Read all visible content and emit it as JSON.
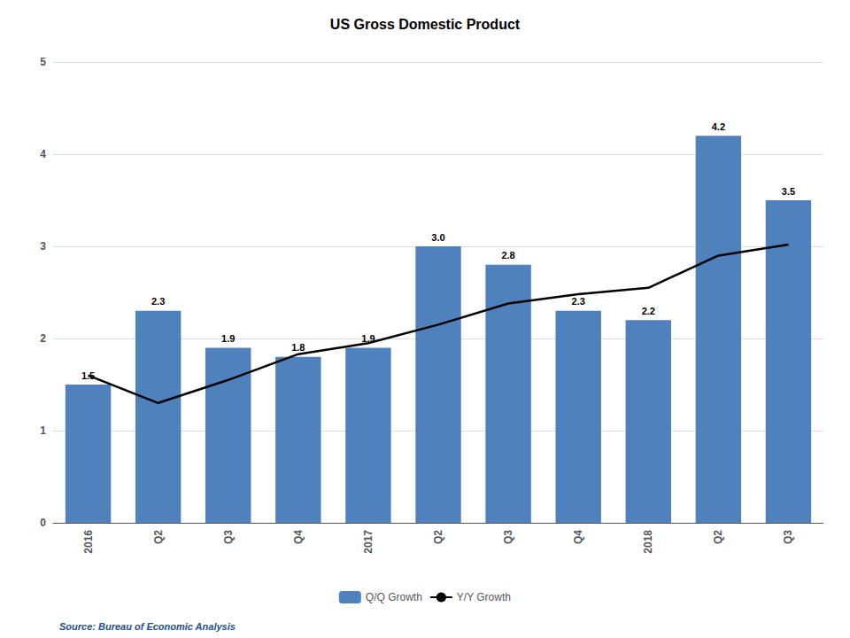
{
  "chart_data": {
    "type": "bar",
    "title": "US Gross Domestic Product",
    "categories": [
      "2016",
      "Q2",
      "Q3",
      "Q4",
      "2017",
      "Q2",
      "Q3",
      "Q4",
      "2018",
      "Q2",
      "Q3"
    ],
    "series": [
      {
        "name": "Q/Q Growth",
        "type": "bar",
        "color": "#4F81BD",
        "values": [
          1.5,
          2.3,
          1.9,
          1.8,
          1.9,
          3.0,
          2.8,
          2.3,
          2.2,
          4.2,
          3.5
        ],
        "data_labels": true,
        "value_labels": [
          "1.5",
          "2.3",
          "1.9",
          "1.8",
          "1.9",
          "3.0",
          "2.8",
          "2.3",
          "2.2",
          "4.2",
          "3.5"
        ]
      },
      {
        "name": "Y/Y Growth",
        "type": "line",
        "color": "#000000",
        "values": [
          1.6,
          1.3,
          1.55,
          1.83,
          1.95,
          2.15,
          2.38,
          2.48,
          2.55,
          2.9,
          3.02
        ]
      }
    ],
    "ylim": [
      0,
      5
    ],
    "yticks": [
      0,
      1,
      2,
      3,
      4,
      5
    ],
    "grid": true,
    "legend": "bottom",
    "annotations": [
      "Source: Bureau of Economic Analysis"
    ]
  }
}
